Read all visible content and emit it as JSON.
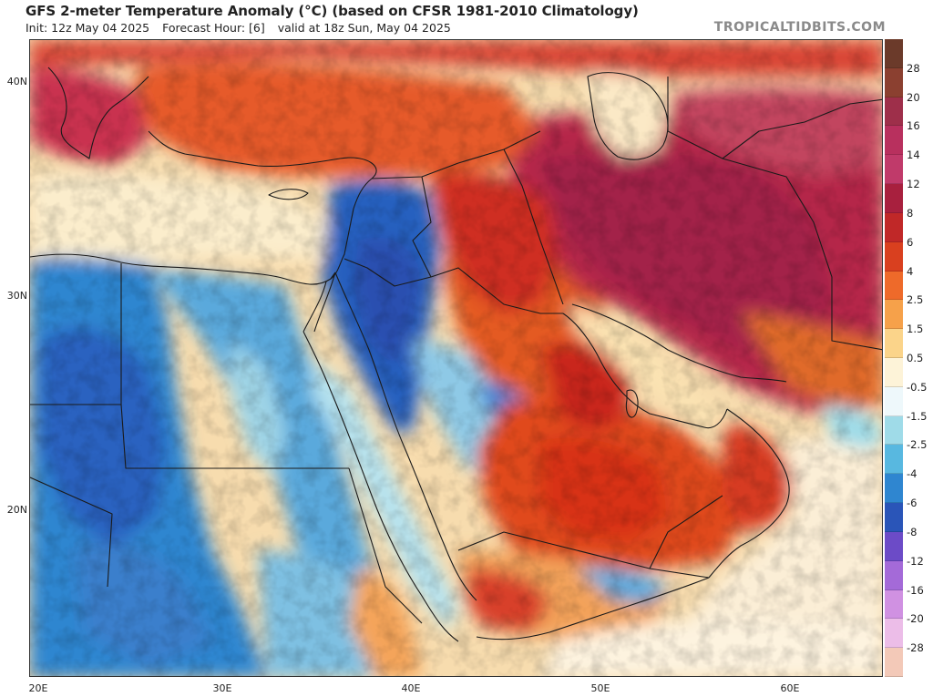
{
  "header": {
    "title": "GFS 2-meter Temperature Anomaly (°C) (based on CFSR 1981-2010 Climatology)",
    "init": "Init: 12z May 04 2025",
    "forecast_hour": "Forecast Hour: [6]",
    "valid": "valid at 18z Sun, May 04 2025",
    "source": "TROPICALTIDBITS.COM"
  },
  "map": {
    "latitude_labels": [
      "40N",
      "30N",
      "20N"
    ],
    "longitude_labels": [
      "20E",
      "30E",
      "40E",
      "50E",
      "60E"
    ]
  },
  "legend": {
    "labels": [
      "28",
      "20",
      "16",
      "14",
      "12",
      "8",
      "6",
      "4",
      "2.5",
      "1.5",
      "0.5",
      "-0.5",
      "-1.5",
      "-2.5",
      "-4",
      "-6",
      "-8",
      "-12",
      "-16",
      "-20",
      "-28"
    ],
    "colors": [
      "#6b3a2a",
      "#8b4030",
      "#9e2f4a",
      "#b8305e",
      "#c03a6a",
      "#a8203e",
      "#c02828",
      "#d9401f",
      "#ee6a2a",
      "#f6a14a",
      "#fbd48a",
      "#fdf3d8",
      "#eef8fb",
      "#9fdbe8",
      "#58b8e0",
      "#2f86d0",
      "#2a55b8",
      "#6c4bc7",
      "#a46ad8",
      "#d091e2",
      "#ecbde8",
      "#f3c9b8"
    ]
  },
  "colors": {
    "warm_strong": "#b01f3c",
    "warm": "#d9401f",
    "warm_light": "#f6a14a",
    "neutral": "#fdf3d8",
    "cool_light": "#9fdbe8",
    "cool": "#2f86d0",
    "cool_strong": "#2a55b8"
  }
}
